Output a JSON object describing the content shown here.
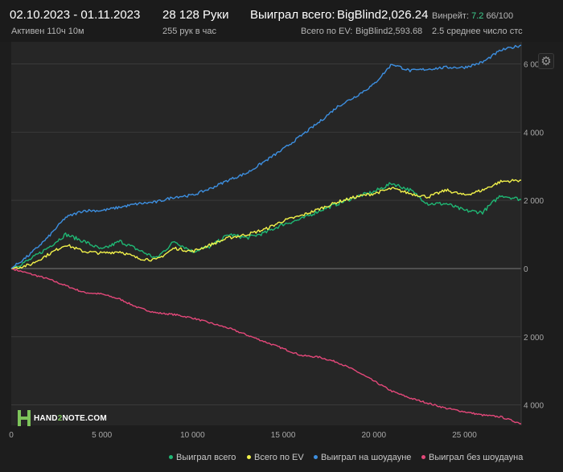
{
  "header": {
    "date_range": "02.10.2023 - 01.11.2023",
    "active": "Активен 110ч 10м",
    "hands": "28 128 Руки",
    "hands_per_hour": "255 рук в час",
    "won_total_label": "Выиграл всего:",
    "won_total_value": "BigBlind2,026.24",
    "ev_label": "Всего по EV:",
    "ev_value": "BigBlind2,593.68",
    "winrate_label": "Винрейт:",
    "winrate_value": "7.2",
    "winrate_tail": "66/100",
    "avg_stack": "2.5 среднее число стс"
  },
  "logo": {
    "pre": "HAND",
    "two": "2",
    "post": "NOTE.COM"
  },
  "icons": {
    "settings": "gear-icon",
    "logo": "hand2note-logo-icon"
  },
  "colors": {
    "won_total": "#1fb774",
    "ev": "#f2f24a",
    "showdown": "#3d8fe0",
    "non_showdown": "#e4487a"
  },
  "chart_data": {
    "type": "line",
    "title": "",
    "xlabel": "",
    "ylabel": "",
    "xlim": [
      0,
      28128
    ],
    "ylim": [
      -4600,
      6650
    ],
    "x_ticks": [
      0,
      5000,
      10000,
      15000,
      20000,
      25000
    ],
    "x_tick_labels": [
      "0",
      "5 000",
      "10 000",
      "15 000",
      "20 000",
      "25 000"
    ],
    "y_ticks": [
      6000,
      4000,
      2000,
      0,
      -2000,
      -4000
    ],
    "y_tick_labels": [
      "6 000",
      "4 000",
      "2 000",
      "0",
      "2 000",
      "4 000"
    ],
    "grid": "horizontal",
    "legend_position": "bottom-right",
    "series": [
      {
        "name": "Выиграл всего",
        "x": [
          0,
          1000,
          2000,
          3000,
          4000,
          5000,
          6000,
          7000,
          8000,
          9000,
          10000,
          11000,
          12000,
          13000,
          14000,
          15000,
          16000,
          17000,
          18000,
          19000,
          20000,
          21000,
          22000,
          23000,
          24000,
          25000,
          26000,
          27000,
          28128
        ],
        "values": [
          0,
          250,
          600,
          1000,
          800,
          550,
          800,
          550,
          300,
          800,
          500,
          650,
          1000,
          900,
          1050,
          1300,
          1450,
          1700,
          1900,
          2100,
          2250,
          2500,
          2300,
          1900,
          1900,
          1700,
          1650,
          2150,
          2026
        ]
      },
      {
        "name": "Всего по EV",
        "x": [
          0,
          1000,
          2000,
          3000,
          4000,
          5000,
          6000,
          7000,
          8000,
          9000,
          10000,
          11000,
          12000,
          13000,
          14000,
          15000,
          16000,
          17000,
          18000,
          19000,
          20000,
          21000,
          22000,
          23000,
          24000,
          25000,
          26000,
          27000,
          28128
        ],
        "values": [
          0,
          100,
          400,
          700,
          500,
          450,
          500,
          300,
          250,
          600,
          500,
          700,
          900,
          1000,
          1150,
          1400,
          1550,
          1750,
          1950,
          2100,
          2200,
          2350,
          2200,
          2100,
          2300,
          2150,
          2300,
          2550,
          2594
        ]
      },
      {
        "name": "Выиграл на шоудауне",
        "x": [
          0,
          1000,
          2000,
          3000,
          4000,
          5000,
          6000,
          7000,
          8000,
          9000,
          10000,
          11000,
          12000,
          13000,
          14000,
          15000,
          16000,
          17000,
          18000,
          19000,
          20000,
          21000,
          22000,
          23000,
          24000,
          25000,
          26000,
          27000,
          28128
        ],
        "values": [
          0,
          400,
          900,
          1500,
          1700,
          1700,
          1800,
          1900,
          1950,
          2100,
          2150,
          2350,
          2600,
          2800,
          3150,
          3500,
          3900,
          4300,
          4750,
          5050,
          5400,
          6000,
          5800,
          5850,
          5900,
          5900,
          6050,
          6400,
          6550
        ]
      },
      {
        "name": "Выиграл без шоудауна",
        "x": [
          0,
          1000,
          2000,
          3000,
          4000,
          5000,
          6000,
          7000,
          8000,
          9000,
          10000,
          11000,
          12000,
          13000,
          14000,
          15000,
          16000,
          17000,
          18000,
          19000,
          20000,
          21000,
          22000,
          23000,
          24000,
          25000,
          26000,
          27000,
          28128
        ],
        "values": [
          0,
          -150,
          -300,
          -500,
          -700,
          -750,
          -900,
          -1150,
          -1300,
          -1350,
          -1450,
          -1600,
          -1750,
          -1950,
          -2150,
          -2350,
          -2550,
          -2600,
          -2750,
          -3000,
          -3300,
          -3600,
          -3800,
          -3950,
          -4100,
          -4200,
          -4300,
          -4350,
          -4550
        ]
      }
    ]
  }
}
